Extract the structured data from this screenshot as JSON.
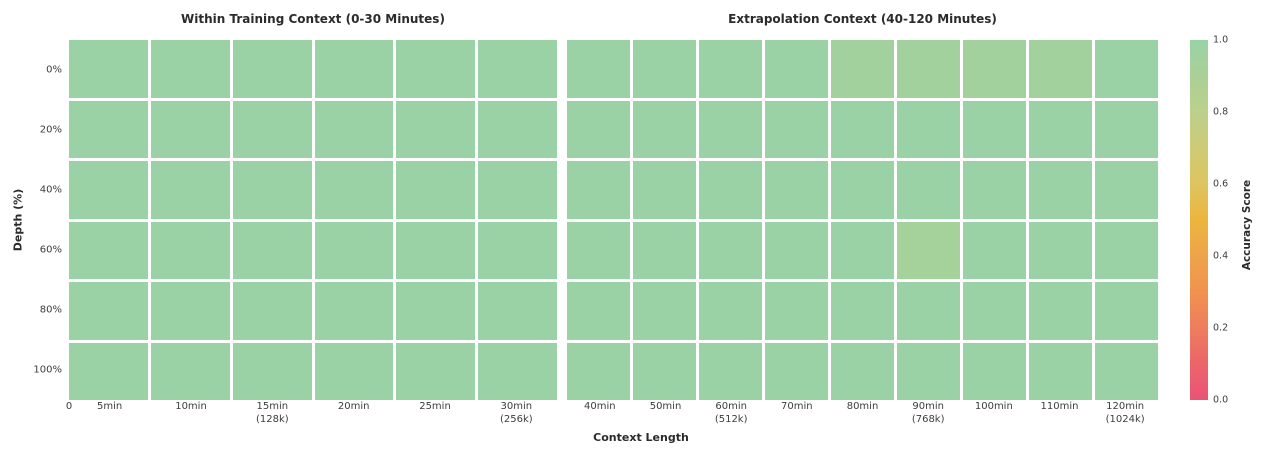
{
  "chart_data": {
    "type": "heatmap",
    "xlabel": "Context Length",
    "ylabel": "Depth (%)",
    "y_ticklabels": [
      "0%",
      "20%",
      "40%",
      "60%",
      "80%",
      "100%"
    ],
    "panels": [
      {
        "title": "Within Training Context (0-30 Minutes)",
        "x_edge_label": "0",
        "x_ticklabels": [
          "5min",
          "10min",
          "15min\n(128k)",
          "20min",
          "25min",
          "30min\n(256k)"
        ],
        "rows": [
          [
            1.0,
            1.0,
            1.0,
            1.0,
            1.0,
            1.0
          ],
          [
            1.0,
            1.0,
            1.0,
            1.0,
            1.0,
            1.0
          ],
          [
            1.0,
            1.0,
            1.0,
            1.0,
            1.0,
            1.0
          ],
          [
            1.0,
            1.0,
            1.0,
            1.0,
            1.0,
            1.0
          ],
          [
            1.0,
            1.0,
            1.0,
            1.0,
            1.0,
            1.0
          ],
          [
            1.0,
            1.0,
            1.0,
            1.0,
            1.0,
            1.0
          ]
        ]
      },
      {
        "title": "Extrapolation Context (40-120 Minutes)",
        "x_edge_label": "",
        "x_ticklabels": [
          "40min",
          "50min",
          "60min\n(512k)",
          "70min",
          "80min",
          "90min\n(768k)",
          "100min",
          "110min",
          "120min\n(1024k)"
        ],
        "rows": [
          [
            1.0,
            1.0,
            1.0,
            1.0,
            0.95,
            0.95,
            0.95,
            0.95,
            1.0
          ],
          [
            1.0,
            1.0,
            1.0,
            1.0,
            1.0,
            1.0,
            1.0,
            1.0,
            1.0
          ],
          [
            1.0,
            1.0,
            1.0,
            1.0,
            1.0,
            1.0,
            1.0,
            1.0,
            1.0
          ],
          [
            1.0,
            1.0,
            1.0,
            1.0,
            1.0,
            0.93,
            1.0,
            1.0,
            1.0
          ],
          [
            1.0,
            1.0,
            1.0,
            1.0,
            1.0,
            1.0,
            1.0,
            1.0,
            1.0
          ],
          [
            1.0,
            1.0,
            1.0,
            1.0,
            1.0,
            1.0,
            1.0,
            1.0,
            1.0
          ]
        ]
      }
    ],
    "colorbar": {
      "label": "Accuracy Score",
      "ticks": [
        "1.0",
        "0.8",
        "0.6",
        "0.4",
        "0.2",
        "0.0"
      ],
      "tick_values": [
        1.0,
        0.8,
        0.6,
        0.4,
        0.2,
        0.0
      ],
      "vmin": 0.0,
      "vmax": 1.0,
      "stops": [
        [
          0.0,
          "#e95377"
        ],
        [
          0.1,
          "#ec6569"
        ],
        [
          0.2,
          "#ee7d5e"
        ],
        [
          0.3,
          "#f0924f"
        ],
        [
          0.4,
          "#eea44a"
        ],
        [
          0.5,
          "#ecb53e"
        ],
        [
          0.6,
          "#ddc45f"
        ],
        [
          0.7,
          "#cecb77"
        ],
        [
          0.8,
          "#bcd08b"
        ],
        [
          0.9,
          "#aad096"
        ],
        [
          1.0,
          "#9ad2a6"
        ]
      ]
    },
    "colors": {
      "base_cell_green": "#9ad2a6",
      "gridline_white": "#ffffff",
      "title_text": "#2b2b2b",
      "tick_text": "#3d3d3d"
    }
  }
}
